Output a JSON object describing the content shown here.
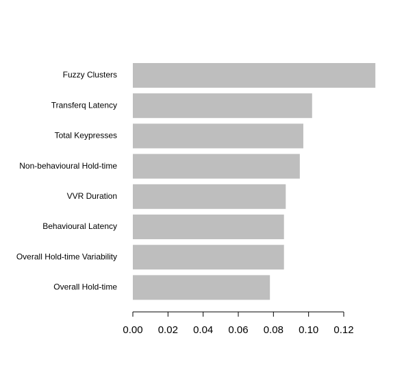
{
  "chart_data": {
    "type": "bar",
    "orientation": "horizontal",
    "categories": [
      "Fuzzy Clusters",
      "Transferq Latency",
      "Total Keypresses",
      "Non-behavioural Hold-time",
      "VVR Duration",
      "Behavioural Latency",
      "Overall Hold-time Variability",
      "Overall Hold-time"
    ],
    "values": [
      0.138,
      0.102,
      0.097,
      0.095,
      0.087,
      0.086,
      0.086,
      0.078
    ],
    "color": "#bebebe",
    "xlim": [
      0,
      0.14
    ],
    "xticks": [
      {
        "value": 0,
        "label": "0.00"
      },
      {
        "value": 0.02,
        "label": "0.02"
      },
      {
        "value": 0.04,
        "label": "0.04"
      },
      {
        "value": 0.06,
        "label": "0.06"
      },
      {
        "value": 0.08,
        "label": "0.08"
      },
      {
        "value": 0.1,
        "label": "0.10"
      },
      {
        "value": 0.12,
        "label": "0.12"
      }
    ],
    "grid": false
  }
}
